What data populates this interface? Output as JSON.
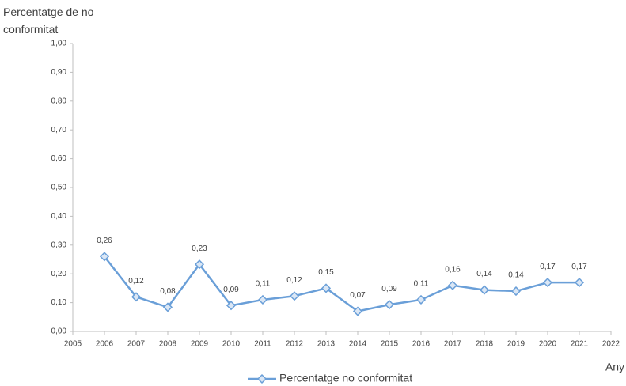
{
  "chart_data": {
    "type": "line",
    "y_label": "Percentatge de no conformitat",
    "x_label": "Any",
    "x": [
      2006,
      2007,
      2008,
      2009,
      2010,
      2011,
      2012,
      2013,
      2014,
      2015,
      2016,
      2017,
      2018,
      2019,
      2020,
      2021
    ],
    "series": [
      {
        "name": "Percentatge no conformitat",
        "color": "#6a9fd8",
        "values": [
          0.26,
          0.12,
          0.084,
          0.233,
          0.09,
          0.11,
          0.123,
          0.15,
          0.07,
          0.093,
          0.11,
          0.16,
          0.144,
          0.14,
          0.17,
          0.17
        ],
        "value_labels": [
          "0,26",
          "0,12",
          "0,08",
          "0,23",
          "0,09",
          "0,11",
          "0,12",
          "0,15",
          "0,07",
          "0,09",
          "0,11",
          "0,16",
          "0,14",
          "0,14",
          "0,17",
          "0,17"
        ]
      }
    ],
    "xlim": [
      2005,
      2022
    ],
    "xticks": [
      2005,
      2006,
      2007,
      2008,
      2009,
      2010,
      2011,
      2012,
      2013,
      2014,
      2015,
      2016,
      2017,
      2018,
      2019,
      2020,
      2021,
      2022
    ],
    "ylim": [
      0,
      1
    ],
    "yticks": [
      {
        "value": 0,
        "label": "0,00"
      },
      {
        "value": 0.1,
        "label": "0,10"
      },
      {
        "value": 0.2,
        "label": "0,20"
      },
      {
        "value": 0.3,
        "label": "0,30"
      },
      {
        "value": 0.4,
        "label": "0,40"
      },
      {
        "value": 0.5,
        "label": "0,50"
      },
      {
        "value": 0.6,
        "label": "0,60"
      },
      {
        "value": 0.7,
        "label": "0,70"
      },
      {
        "value": 0.8,
        "label": "0,80"
      },
      {
        "value": 0.9,
        "label": "0,90"
      },
      {
        "value": 1,
        "label": "1,00"
      }
    ],
    "grid": false,
    "legend": "bottom"
  }
}
